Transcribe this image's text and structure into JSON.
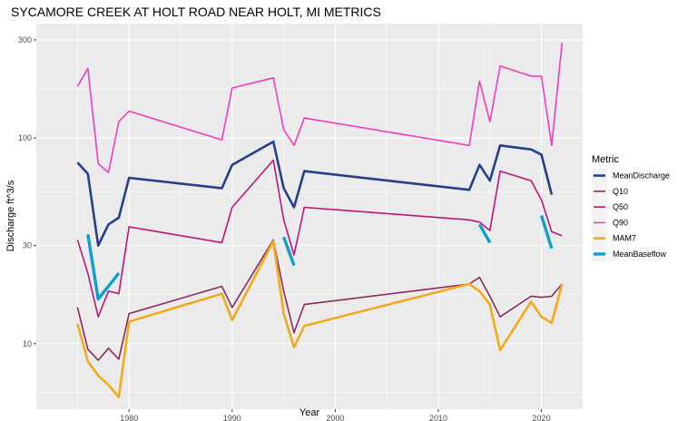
{
  "chart_data": {
    "type": "line",
    "title": "SYCAMORE CREEK AT HOLT ROAD NEAR HOLT, MI  METRICS",
    "xlabel": "Year",
    "ylabel": "Discharge ft^3/s",
    "x_scale": "linear",
    "y_scale": "log10",
    "xlim": [
      1971,
      2024
    ],
    "ylim": [
      4.8,
      360
    ],
    "x_ticks": [
      1980,
      1990,
      2000,
      2010,
      2020
    ],
    "x_tick_labels": [
      "1980",
      "1990",
      "2000",
      "2010",
      "2020"
    ],
    "y_ticks": [
      10,
      30,
      100,
      300
    ],
    "y_tick_labels": [
      "10",
      "30",
      "100",
      "300"
    ],
    "grid": true,
    "legend_title": "Metric",
    "legend_position": "right",
    "colors": {
      "panel": "#ebebeb",
      "grid": "#ffffff",
      "MeanDischarge": "#253f8c",
      "Q10": "#8b2a5e",
      "Q50": "#bd157a",
      "Q90": "#f03dbd",
      "MAM7": "#f0ab1a",
      "MeanBaseflow": "#0f9fcc"
    },
    "series": [
      {
        "name": "MeanDischarge",
        "points": [
          [
            1975,
            76
          ],
          [
            1976,
            67
          ],
          [
            1977,
            30
          ],
          [
            1978,
            38
          ],
          [
            1979,
            41
          ],
          [
            1980,
            64
          ],
          [
            1989,
            57
          ],
          [
            1990,
            74
          ],
          [
            1994,
            96
          ],
          [
            1995,
            57
          ],
          [
            1996,
            46
          ],
          [
            1997,
            69
          ],
          [
            2013,
            56
          ],
          [
            2014,
            74
          ],
          [
            2015,
            62
          ],
          [
            2016,
            92
          ],
          [
            2019,
            88
          ],
          [
            2020,
            83
          ],
          [
            2021,
            53
          ]
        ]
      },
      {
        "name": "Q10",
        "points": [
          [
            1975,
            15
          ],
          [
            1976,
            9.4
          ],
          [
            1977,
            8.3
          ],
          [
            1978,
            9.5
          ],
          [
            1979,
            8.4
          ],
          [
            1980,
            14
          ],
          [
            1989,
            19
          ],
          [
            1990,
            15
          ],
          [
            1994,
            32
          ],
          [
            1995,
            18
          ],
          [
            1996,
            11.3
          ],
          [
            1997,
            15.5
          ],
          [
            2013,
            19.5
          ],
          [
            2014,
            21
          ],
          [
            2015,
            17
          ],
          [
            2016,
            13.5
          ],
          [
            2019,
            17
          ],
          [
            2020,
            16.8
          ],
          [
            2021,
            17
          ],
          [
            2022,
            19.5
          ]
        ]
      },
      {
        "name": "Q50",
        "points": [
          [
            1975,
            32
          ],
          [
            1976,
            22
          ],
          [
            1977,
            13.5
          ],
          [
            1978,
            18
          ],
          [
            1979,
            17.5
          ],
          [
            1980,
            37
          ],
          [
            1989,
            31
          ],
          [
            1990,
            46
          ],
          [
            1994,
            78
          ],
          [
            1995,
            40
          ],
          [
            1996,
            27
          ],
          [
            1997,
            46
          ],
          [
            2013,
            40
          ],
          [
            2014,
            39
          ],
          [
            2015,
            35.5
          ],
          [
            2016,
            69
          ],
          [
            2019,
            62
          ],
          [
            2020,
            50
          ],
          [
            2021,
            35
          ],
          [
            2022,
            33.5
          ]
        ]
      },
      {
        "name": "Q90",
        "points": [
          [
            1975,
            178
          ],
          [
            1976,
            218
          ],
          [
            1977,
            75
          ],
          [
            1978,
            68
          ],
          [
            1979,
            120
          ],
          [
            1980,
            135
          ],
          [
            1989,
            98
          ],
          [
            1990,
            175
          ],
          [
            1994,
            196
          ],
          [
            1995,
            110
          ],
          [
            1996,
            92
          ],
          [
            1997,
            125
          ],
          [
            2013,
            92
          ],
          [
            2014,
            189
          ],
          [
            2015,
            120
          ],
          [
            2016,
            224
          ],
          [
            2019,
            200
          ],
          [
            2020,
            200
          ],
          [
            2021,
            92
          ],
          [
            2022,
            290
          ]
        ]
      },
      {
        "name": "MAM7",
        "points": [
          [
            1975,
            12.5
          ],
          [
            1976,
            8.2
          ],
          [
            1977,
            7.0
          ],
          [
            1978,
            6.3
          ],
          [
            1979,
            5.5
          ],
          [
            1980,
            12.8
          ],
          [
            1989,
            17.5
          ],
          [
            1990,
            13
          ],
          [
            1994,
            31.5
          ],
          [
            1995,
            14
          ],
          [
            1996,
            9.6
          ],
          [
            1997,
            12.2
          ],
          [
            2013,
            19.5
          ],
          [
            2014,
            18
          ],
          [
            2015,
            15.5
          ],
          [
            2016,
            9.3
          ],
          [
            2019,
            16
          ],
          [
            2020,
            13.5
          ],
          [
            2021,
            12.6
          ],
          [
            2022,
            19.5
          ]
        ]
      },
      {
        "name": "MeanBaseflow",
        "segments": [
          [
            [
              1976,
              34
            ],
            [
              1977,
              16.5
            ],
            [
              1978,
              19
            ],
            [
              1979,
              22
            ]
          ],
          [
            [
              1995,
              33
            ],
            [
              1996,
              24
            ]
          ],
          [
            [
              2014,
              38
            ],
            [
              2015,
              31
            ]
          ],
          [
            [
              2020,
              42
            ],
            [
              2021,
              29
            ]
          ]
        ]
      }
    ]
  }
}
